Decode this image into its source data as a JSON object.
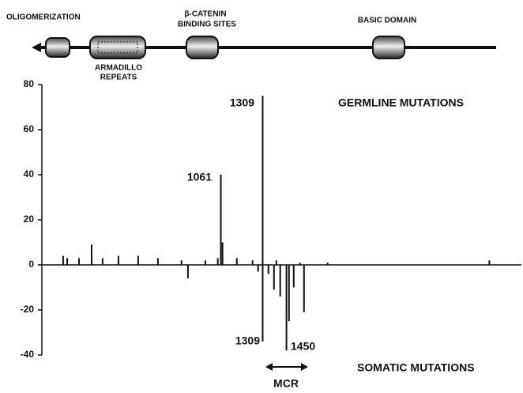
{
  "chart_data": {
    "type": "bar",
    "domains": [
      "OLIGOMERIZATION",
      "ARMADILLO",
      "REPEATS",
      "β-CATENIN",
      "BINDING SITES",
      "BASIC DOMAIN"
    ],
    "annotations": [
      "1309",
      "1061",
      "GERMLINE MUTATIONS",
      "1309",
      "1450",
      "SOMATIC MUTATIONS",
      "MCR"
    ],
    "xlim": [
      0,
      2843
    ],
    "ylim": [
      -40,
      80
    ],
    "yticks": [
      80,
      60,
      40,
      20,
      0,
      -20,
      -40
    ],
    "color": "#111111",
    "series": [
      {
        "name": "GERMLINE MUTATIONS",
        "color": "#111111",
        "x": [
          126,
          150,
          220,
          295,
          360,
          454,
          571,
          688,
          828,
          969,
          1043,
          1061,
          1071,
          1156,
          1249,
          1309,
          1390,
          1530,
          1694,
          2653
        ],
        "values": [
          4,
          3,
          3,
          9,
          3,
          4,
          4,
          3,
          2,
          2,
          3,
          40,
          10,
          3,
          2,
          75,
          2,
          1,
          1,
          2
        ]
      },
      {
        "name": "SOMATIC MUTATIONS",
        "color": "#111111",
        "x": [
          866,
          1282,
          1309,
          1343,
          1376,
          1413,
          1450,
          1465,
          1493,
          1554
        ],
        "values": [
          -6,
          -3,
          -34,
          -4,
          -11,
          -14,
          -38,
          -25,
          -10,
          -21
        ]
      }
    ]
  }
}
